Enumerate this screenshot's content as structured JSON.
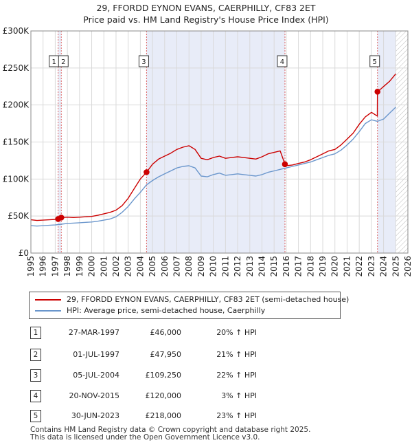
{
  "title": {
    "line1": "29, FFORDD EYNON EVANS, CAERPHILLY, CF83 2ET",
    "line2": "Price paid vs. HM Land Registry's House Price Index (HPI)"
  },
  "colors": {
    "property": "#cc0000",
    "hpi": "#6a96cc",
    "shade": "#e8ecf8",
    "grid": "#d9d9d9",
    "marker_line": "#dd6666"
  },
  "chart_data": {
    "type": "line",
    "title": "29, FFORDD EYNON EVANS, CAERPHILLY, CF83 2ET - Price paid vs. HM Land Registry's House Price Index (HPI)",
    "xlabel": "",
    "ylabel": "",
    "xlim": [
      1995,
      2026
    ],
    "ylim": [
      0,
      300000
    ],
    "y_ticks": [
      0,
      50000,
      100000,
      150000,
      200000,
      250000,
      300000
    ],
    "y_tick_labels": [
      "£0",
      "£50K",
      "£100K",
      "£150K",
      "£200K",
      "£250K",
      "£300K"
    ],
    "x_ticks": [
      1995,
      1996,
      1997,
      1998,
      1999,
      2000,
      2001,
      2002,
      2003,
      2004,
      2005,
      2006,
      2007,
      2008,
      2009,
      2010,
      2011,
      2012,
      2013,
      2014,
      2015,
      2016,
      2017,
      2018,
      2019,
      2020,
      2021,
      2022,
      2023,
      2024,
      2025,
      2026
    ],
    "x_tick_labels": [
      "1995",
      "1996",
      "1997",
      "1998",
      "1999",
      "2000",
      "2001",
      "2002",
      "2003",
      "2004",
      "2005",
      "2006",
      "2007",
      "2008",
      "2009",
      "2010",
      "2011",
      "2012",
      "2013",
      "2014",
      "2015",
      "2016",
      "2017",
      "2018",
      "2019",
      "2020",
      "2021",
      "2022",
      "2023",
      "2024",
      "2025",
      "2026"
    ],
    "grid": true,
    "shaded_spans": [
      [
        1997.24,
        1997.5
      ],
      [
        2004.51,
        2015.89
      ],
      [
        2023.5,
        2025.0
      ]
    ],
    "future_hatch_from": 2025.0,
    "series": [
      {
        "name": "29, FFORDD EYNON EVANS, CAERPHILLY, CF83 2ET (semi-detached house)",
        "color": "#cc0000",
        "points": [
          [
            1995.0,
            45000
          ],
          [
            1995.5,
            44000
          ],
          [
            1996.0,
            44500
          ],
          [
            1996.5,
            45000
          ],
          [
            1997.0,
            45500
          ],
          [
            1997.24,
            46000
          ],
          [
            1997.5,
            47950
          ],
          [
            1998.0,
            48500
          ],
          [
            1998.5,
            48000
          ],
          [
            1999.0,
            48500
          ],
          [
            1999.5,
            49000
          ],
          [
            2000.0,
            49500
          ],
          [
            2000.5,
            51000
          ],
          [
            2001.0,
            53000
          ],
          [
            2001.5,
            55000
          ],
          [
            2002.0,
            58000
          ],
          [
            2002.5,
            64000
          ],
          [
            2003.0,
            74000
          ],
          [
            2003.5,
            87000
          ],
          [
            2004.0,
            100000
          ],
          [
            2004.51,
            109250
          ],
          [
            2005.0,
            120000
          ],
          [
            2005.5,
            127000
          ],
          [
            2006.0,
            131000
          ],
          [
            2006.5,
            135000
          ],
          [
            2007.0,
            140000
          ],
          [
            2007.5,
            143000
          ],
          [
            2008.0,
            145000
          ],
          [
            2008.5,
            140000
          ],
          [
            2009.0,
            128000
          ],
          [
            2009.5,
            126000
          ],
          [
            2010.0,
            129000
          ],
          [
            2010.5,
            131000
          ],
          [
            2011.0,
            128000
          ],
          [
            2011.5,
            129000
          ],
          [
            2012.0,
            130000
          ],
          [
            2012.5,
            129000
          ],
          [
            2013.0,
            128000
          ],
          [
            2013.5,
            127000
          ],
          [
            2014.0,
            130000
          ],
          [
            2014.5,
            134000
          ],
          [
            2015.0,
            136000
          ],
          [
            2015.5,
            138000
          ],
          [
            2015.89,
            120000
          ],
          [
            2016.0,
            118000
          ],
          [
            2016.5,
            119000
          ],
          [
            2017.0,
            121000
          ],
          [
            2017.5,
            123000
          ],
          [
            2018.0,
            126000
          ],
          [
            2018.5,
            130000
          ],
          [
            2019.0,
            134000
          ],
          [
            2019.5,
            138000
          ],
          [
            2020.0,
            140000
          ],
          [
            2020.5,
            146000
          ],
          [
            2021.0,
            154000
          ],
          [
            2021.5,
            162000
          ],
          [
            2022.0,
            174000
          ],
          [
            2022.5,
            184000
          ],
          [
            2023.0,
            190000
          ],
          [
            2023.3,
            187000
          ],
          [
            2023.49,
            185000
          ],
          [
            2023.5,
            218000
          ],
          [
            2023.8,
            222000
          ],
          [
            2024.0,
            225000
          ],
          [
            2024.5,
            232000
          ],
          [
            2025.0,
            242000
          ]
        ]
      },
      {
        "name": "HPI: Average price, semi-detached house, Caerphilly",
        "color": "#6a96cc",
        "points": [
          [
            1995.0,
            37000
          ],
          [
            1995.5,
            36500
          ],
          [
            1996.0,
            37000
          ],
          [
            1996.5,
            37500
          ],
          [
            1997.0,
            38000
          ],
          [
            1997.5,
            39000
          ],
          [
            1998.0,
            40000
          ],
          [
            1998.5,
            40500
          ],
          [
            1999.0,
            41000
          ],
          [
            1999.5,
            41500
          ],
          [
            2000.0,
            42000
          ],
          [
            2000.5,
            43000
          ],
          [
            2001.0,
            44500
          ],
          [
            2001.5,
            46000
          ],
          [
            2002.0,
            49000
          ],
          [
            2002.5,
            55000
          ],
          [
            2003.0,
            63000
          ],
          [
            2003.5,
            73000
          ],
          [
            2004.0,
            82000
          ],
          [
            2004.5,
            92000
          ],
          [
            2005.0,
            98000
          ],
          [
            2005.5,
            103000
          ],
          [
            2006.0,
            107000
          ],
          [
            2006.5,
            111000
          ],
          [
            2007.0,
            115000
          ],
          [
            2007.5,
            117000
          ],
          [
            2008.0,
            118000
          ],
          [
            2008.5,
            115000
          ],
          [
            2009.0,
            104000
          ],
          [
            2009.5,
            103000
          ],
          [
            2010.0,
            106000
          ],
          [
            2010.5,
            108000
          ],
          [
            2011.0,
            105000
          ],
          [
            2011.5,
            106000
          ],
          [
            2012.0,
            107000
          ],
          [
            2012.5,
            106000
          ],
          [
            2013.0,
            105000
          ],
          [
            2013.5,
            104000
          ],
          [
            2014.0,
            106000
          ],
          [
            2014.5,
            109000
          ],
          [
            2015.0,
            111000
          ],
          [
            2015.5,
            113000
          ],
          [
            2016.0,
            115000
          ],
          [
            2016.5,
            117000
          ],
          [
            2017.0,
            119000
          ],
          [
            2017.5,
            121000
          ],
          [
            2018.0,
            123000
          ],
          [
            2018.5,
            126000
          ],
          [
            2019.0,
            129000
          ],
          [
            2019.5,
            132000
          ],
          [
            2020.0,
            134000
          ],
          [
            2020.5,
            139000
          ],
          [
            2021.0,
            146000
          ],
          [
            2021.5,
            154000
          ],
          [
            2022.0,
            164000
          ],
          [
            2022.5,
            175000
          ],
          [
            2023.0,
            180000
          ],
          [
            2023.5,
            178000
          ],
          [
            2024.0,
            181000
          ],
          [
            2024.5,
            189000
          ],
          [
            2025.0,
            197000
          ]
        ]
      }
    ],
    "markers": [
      {
        "label": "1",
        "x": 1997.24,
        "price": 46000
      },
      {
        "label": "2",
        "x": 1997.5,
        "price": 47950
      },
      {
        "label": "3",
        "x": 2004.51,
        "price": 109250
      },
      {
        "label": "4",
        "x": 2015.89,
        "price": 120000
      },
      {
        "label": "5",
        "x": 2023.5,
        "price": 218000
      }
    ]
  },
  "legend": {
    "property_label": "29, FFORDD EYNON EVANS, CAERPHILLY, CF83 2ET (semi-detached house)",
    "hpi_label": "HPI: Average price, semi-detached house, Caerphilly"
  },
  "sales": [
    {
      "num": "1",
      "date": "27-MAR-1997",
      "price": "£46,000",
      "hpi": "20% ↑ HPI"
    },
    {
      "num": "2",
      "date": "01-JUL-1997",
      "price": "£47,950",
      "hpi": "21% ↑ HPI"
    },
    {
      "num": "3",
      "date": "05-JUL-2004",
      "price": "£109,250",
      "hpi": "22% ↑ HPI"
    },
    {
      "num": "4",
      "date": "20-NOV-2015",
      "price": "£120,000",
      "hpi": "3% ↑ HPI"
    },
    {
      "num": "5",
      "date": "30-JUN-2023",
      "price": "£218,000",
      "hpi": "23% ↑ HPI"
    }
  ],
  "footer": {
    "line1": "Contains HM Land Registry data © Crown copyright and database right 2025.",
    "line2": "This data is licensed under the Open Government Licence v3.0."
  }
}
